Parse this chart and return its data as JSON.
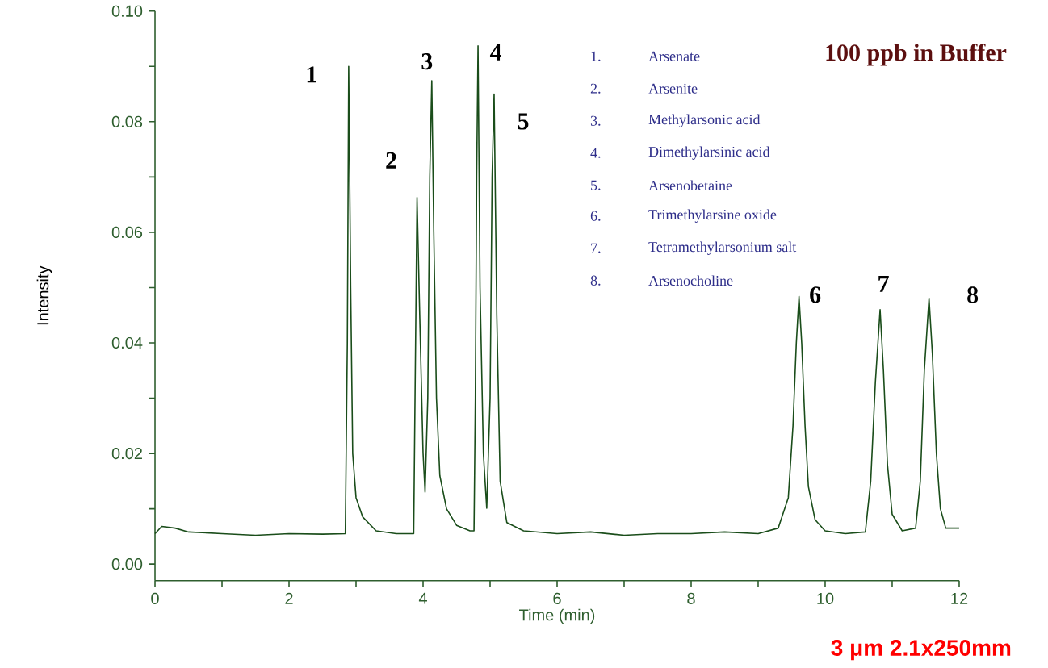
{
  "chart_data": {
    "type": "line",
    "xlabel": "Time (min)",
    "ylabel": "Intensity",
    "xlim": [
      0,
      12
    ],
    "ylim": [
      -0.003,
      0.1
    ],
    "xticks": [
      0,
      {
        "value": 1,
        "label": null
      },
      2,
      {
        "value": 3,
        "label": null
      },
      4,
      {
        "value": 5,
        "label": null
      },
      6,
      {
        "value": 7,
        "label": null
      },
      8,
      {
        "value": 9,
        "label": null
      },
      10,
      {
        "value": 11,
        "label": null
      },
      12
    ],
    "yticks": [
      {
        "value": 0,
        "label": "0.00"
      },
      {
        "value": 0.01,
        "label": null
      },
      {
        "value": 0.02,
        "label": "0.02"
      },
      {
        "value": 0.03,
        "label": null
      },
      {
        "value": 0.04,
        "label": "0.04"
      },
      {
        "value": 0.05,
        "label": null
      },
      {
        "value": 0.06,
        "label": "0.06"
      },
      {
        "value": 0.07,
        "label": null
      },
      {
        "value": 0.08,
        "label": "0.08"
      },
      {
        "value": 0.09,
        "label": null
      },
      {
        "value": 0.1,
        "label": "0.10"
      }
    ],
    "series": [
      {
        "color": "#1a4d1a",
        "x": [
          0,
          0.1,
          0.3,
          0.5,
          1.0,
          1.5,
          2.0,
          2.5,
          2.84,
          2.87,
          2.89,
          2.92,
          2.95,
          3.0,
          3.1,
          3.3,
          3.6,
          3.86,
          3.88,
          3.91,
          3.95,
          4.0,
          4.03,
          4.07,
          4.1,
          4.13,
          4.16,
          4.2,
          4.25,
          4.35,
          4.5,
          4.7,
          4.76,
          4.78,
          4.8,
          4.82,
          4.85,
          4.9,
          4.95,
          5.0,
          5.03,
          5.06,
          5.1,
          5.15,
          5.25,
          5.5,
          6,
          6.5,
          7,
          7.5,
          8,
          8.5,
          9.0,
          9.3,
          9.45,
          9.52,
          9.57,
          9.61,
          9.65,
          9.7,
          9.75,
          9.85,
          10.0,
          10.3,
          10.6,
          10.68,
          10.75,
          10.82,
          10.87,
          10.93,
          11.0,
          11.15,
          11.35,
          11.42,
          11.48,
          11.55,
          11.6,
          11.66,
          11.72,
          11.8,
          12
        ],
        "values": [
          0.0055,
          0.0068,
          0.0065,
          0.0058,
          0.0055,
          0.0052,
          0.0055,
          0.0054,
          0.0055,
          0.04,
          0.09,
          0.05,
          0.02,
          0.012,
          0.0085,
          0.006,
          0.0055,
          0.0055,
          0.03,
          0.0663,
          0.045,
          0.02,
          0.013,
          0.03,
          0.07,
          0.0874,
          0.06,
          0.03,
          0.016,
          0.01,
          0.007,
          0.006,
          0.006,
          0.03,
          0.07,
          0.0937,
          0.05,
          0.02,
          0.0101,
          0.03,
          0.07,
          0.085,
          0.045,
          0.015,
          0.0075,
          0.006,
          0.0055,
          0.0058,
          0.0052,
          0.0055,
          0.0055,
          0.0058,
          0.0055,
          0.0065,
          0.012,
          0.025,
          0.04,
          0.0484,
          0.04,
          0.025,
          0.014,
          0.008,
          0.006,
          0.0055,
          0.0058,
          0.015,
          0.033,
          0.046,
          0.035,
          0.018,
          0.009,
          0.006,
          0.0065,
          0.015,
          0.035,
          0.0481,
          0.038,
          0.02,
          0.01,
          0.0065,
          0.0065
        ]
      }
    ],
    "annotations": [
      {
        "text": "1",
        "x": 2.89,
        "y": 0.09
      },
      {
        "text": "2",
        "x": 3.91,
        "y": 0.0663
      },
      {
        "text": "3",
        "x": 4.13,
        "y": 0.0874
      },
      {
        "text": "4",
        "x": 4.82,
        "y": 0.0937
      },
      {
        "text": "5",
        "x": 5.06,
        "y": 0.085
      },
      {
        "text": "6",
        "x": 9.61,
        "y": 0.0484
      },
      {
        "text": "7",
        "x": 10.82,
        "y": 0.046
      },
      {
        "text": "8",
        "x": 11.55,
        "y": 0.0481
      },
      "1.",
      "Arsenate",
      "2.",
      "Arsenite",
      "3.",
      "Methylarsonic acid",
      "4.",
      "Dimethylarsinic acid",
      "5.",
      "Arsenobetaine",
      "6.",
      "Trimethylarsine oxide",
      "7.",
      "Tetramethylarsonium salt",
      "8.",
      "Arsenocholine",
      "100 ppb in Buffer",
      "3 μm  2.1x250mm"
    ]
  }
}
